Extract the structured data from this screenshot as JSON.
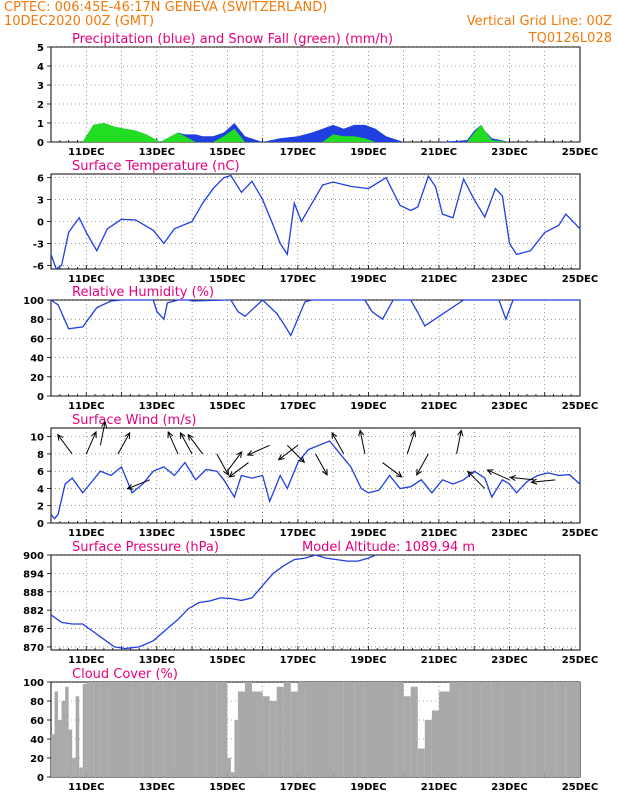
{
  "header": {
    "line1_left": "CPTEC:   006:45E-46:17N   GENEVA (SWITZERLAND)",
    "line2_left": "10DEC2020 00Z (GMT)",
    "line2_right": "Vertical Grid Line: 00Z",
    "line3_right": "TQ0126L028"
  },
  "colors": {
    "header": "#f27a0b",
    "title": "#e6007e",
    "line": "#1f3fe0",
    "snow": "#22dd22",
    "cloud": "#a9a9a9",
    "arrow": "#000000"
  },
  "chart_data": [
    {
      "type": "area",
      "title": "Precipitation (blue) and Snow Fall (green) (mm/h)",
      "ylim": [
        0,
        5
      ],
      "yticks": [
        "0",
        "1",
        "2",
        "3",
        "4",
        "5"
      ],
      "x": [
        10.5,
        10.9,
        11.2,
        11.5,
        11.8,
        12.1,
        12.4,
        12.7,
        13.1,
        13.6,
        13.8,
        14.1,
        14.3,
        14.6,
        14.9,
        15.2,
        15.5,
        16.0,
        16.5,
        17.0,
        17.4,
        17.7,
        18.0,
        18.3,
        18.6,
        18.9,
        19.2,
        19.5,
        20.0,
        21.0,
        21.8,
        22.0,
        22.2,
        22.3,
        22.5,
        23.0,
        24.0,
        24.9
      ],
      "series": [
        {
          "name": "precipitation",
          "values": [
            0,
            0,
            0.9,
            1.0,
            0.8,
            0.7,
            0.6,
            0.4,
            0,
            0.5,
            0.4,
            0.4,
            0.3,
            0.3,
            0.5,
            1.0,
            0.3,
            0,
            0.2,
            0.3,
            0.5,
            0.7,
            0.9,
            0.7,
            0.9,
            0.9,
            0.7,
            0.3,
            0,
            0,
            0.1,
            0.6,
            0.9,
            0.6,
            0.2,
            0,
            0,
            0
          ]
        },
        {
          "name": "snowfall",
          "values": [
            0,
            0,
            0.9,
            1.0,
            0.8,
            0.7,
            0.6,
            0.4,
            0,
            0.5,
            0.3,
            0,
            0,
            0,
            0.3,
            0.7,
            0,
            0,
            0,
            0,
            0,
            0,
            0.4,
            0.3,
            0.3,
            0.2,
            0,
            0,
            0,
            0,
            0,
            0.5,
            0.9,
            0.6,
            0.1,
            0,
            0,
            0
          ]
        }
      ],
      "xticks": [
        "11DEC",
        "13DEC",
        "15DEC",
        "17DEC",
        "19DEC",
        "21DEC",
        "23DEC",
        "25DEC"
      ]
    },
    {
      "type": "line",
      "title": "Surface Temperature (nC)",
      "ylim": [
        -6.5,
        6.5
      ],
      "yticks": [
        "-6",
        "-3",
        "0",
        "3",
        "6"
      ],
      "ytick_values": [
        -6,
        -3,
        0,
        3,
        6
      ],
      "x": [
        10.0,
        10.15,
        10.3,
        10.5,
        10.8,
        11.0,
        11.3,
        11.6,
        12.0,
        12.4,
        12.9,
        13.2,
        13.5,
        14.0,
        14.3,
        14.6,
        14.9,
        15.1,
        15.4,
        15.7,
        16.0,
        16.3,
        16.5,
        16.7,
        16.9,
        17.1,
        17.4,
        17.7,
        18.0,
        18.5,
        19.0,
        19.5,
        19.9,
        20.2,
        20.4,
        20.7,
        20.9,
        21.1,
        21.4,
        21.7,
        22.0,
        22.3,
        22.6,
        22.8,
        23.0,
        23.2,
        23.6,
        24.0,
        24.4,
        24.6,
        25.0
      ],
      "values": [
        -4.5,
        -6.5,
        -6.0,
        -1.5,
        0.5,
        -1.5,
        -4.0,
        -1.0,
        0.3,
        0.2,
        -1.2,
        -3.0,
        -1.0,
        0.0,
        2.5,
        4.5,
        6.0,
        6.3,
        4.0,
        5.5,
        3.0,
        -0.5,
        -3.0,
        -4.5,
        2.5,
        0.0,
        2.5,
        5.0,
        5.4,
        4.8,
        4.5,
        6.0,
        2.2,
        1.5,
        2.0,
        6.2,
        4.8,
        1.0,
        0.5,
        5.8,
        3.0,
        0.6,
        4.5,
        3.5,
        -3.0,
        -4.5,
        -4.0,
        -1.5,
        -0.5,
        1.0,
        -1.0
      ],
      "xticks": [
        "11DEC",
        "13DEC",
        "15DEC",
        "17DEC",
        "19DEC",
        "21DEC",
        "23DEC",
        "25DEC"
      ]
    },
    {
      "type": "line",
      "title": "Relative Humidity (%)",
      "ylim": [
        0,
        100
      ],
      "yticks": [
        "0",
        "20",
        "40",
        "60",
        "80",
        "100"
      ],
      "x": [
        10.0,
        10.2,
        10.5,
        10.9,
        11.3,
        11.7,
        12.0,
        12.9,
        13.0,
        13.2,
        13.3,
        13.6,
        13.9,
        14.0,
        15.0,
        15.1,
        15.3,
        15.5,
        16.0,
        16.4,
        16.6,
        16.8,
        17.2,
        17.4,
        18.5,
        18.9,
        19.1,
        19.4,
        19.7,
        20.2,
        20.4,
        20.6,
        21.7,
        21.9,
        22.0,
        22.7,
        22.9,
        23.1,
        25.0
      ],
      "values": [
        100,
        95,
        70,
        72,
        92,
        99,
        100,
        100,
        88,
        80,
        97,
        100,
        100,
        99,
        100,
        100,
        88,
        83,
        100,
        86,
        75,
        63,
        98,
        100,
        100,
        100,
        88,
        80,
        100,
        100,
        87,
        73,
        100,
        100,
        100,
        100,
        80,
        100,
        100
      ],
      "xticks": [
        "11DEC",
        "13DEC",
        "15DEC",
        "17DEC",
        "19DEC",
        "21DEC",
        "23DEC",
        "25DEC"
      ]
    },
    {
      "type": "line",
      "title": "Surface Wind (m/s)",
      "ylim": [
        0,
        11
      ],
      "yticks": [
        "0",
        "2",
        "4",
        "6",
        "8",
        "10"
      ],
      "x": [
        10.0,
        10.1,
        10.2,
        10.4,
        10.6,
        10.9,
        11.1,
        11.4,
        11.7,
        12.0,
        12.3,
        12.6,
        12.9,
        13.2,
        13.5,
        13.8,
        14.1,
        14.4,
        14.7,
        14.9,
        15.2,
        15.4,
        15.7,
        16.0,
        16.2,
        16.5,
        16.7,
        17.0,
        17.3,
        17.6,
        17.9,
        18.2,
        18.5,
        18.8,
        19.0,
        19.3,
        19.6,
        19.9,
        20.2,
        20.5,
        20.8,
        21.1,
        21.4,
        21.7,
        22.0,
        22.3,
        22.5,
        22.8,
        23.0,
        23.2,
        23.5,
        23.8,
        24.1,
        24.4,
        24.7,
        25.0
      ],
      "values": [
        1.0,
        0.5,
        1.0,
        4.5,
        5.2,
        3.5,
        4.5,
        6.0,
        5.5,
        6.5,
        3.5,
        4.5,
        6.0,
        6.5,
        5.5,
        7.0,
        5.0,
        6.2,
        6.0,
        5.0,
        3.0,
        5.5,
        5.2,
        5.5,
        2.5,
        5.5,
        4.0,
        7.0,
        8.5,
        9.0,
        9.5,
        8.0,
        6.5,
        4.0,
        3.5,
        3.8,
        5.5,
        4.0,
        4.2,
        5.0,
        3.5,
        5.0,
        4.5,
        5.0,
        6.0,
        5.2,
        3.0,
        5.0,
        4.5,
        3.5,
        4.8,
        5.5,
        5.8,
        5.5,
        5.6,
        4.5
      ],
      "arrows_speed": [
        8,
        8,
        9,
        8,
        5,
        8,
        8,
        8,
        8,
        6,
        7,
        9,
        9,
        9,
        8,
        8,
        8,
        7,
        8,
        8,
        8,
        4,
        5,
        5,
        5
      ],
      "arrows_x": [
        10.6,
        11.0,
        11.4,
        11.9,
        12.8,
        13.6,
        14.0,
        14.3,
        14.7,
        15.0,
        15.6,
        16.2,
        16.7,
        17.0,
        17.5,
        18.3,
        18.9,
        19.4,
        20.1,
        20.7,
        21.5,
        22.3,
        23.0,
        23.7,
        24.3
      ],
      "arrows_dx": [
        -0.6,
        0.4,
        0.2,
        0.5,
        -1.0,
        -0.4,
        -0.5,
        -0.6,
        0.5,
        0.6,
        -0.8,
        -0.9,
        0.7,
        -0.8,
        0.5,
        -0.5,
        -0.2,
        0.8,
        0.3,
        -0.5,
        0.2,
        -0.7,
        -0.9,
        -1.0,
        -1.0
      ],
      "arrows_dy": [
        -0.8,
        -0.9,
        -1.0,
        -0.9,
        0.4,
        -0.9,
        -0.9,
        -0.8,
        0.9,
        -0.8,
        0.6,
        0.4,
        0.7,
        0.6,
        0.9,
        -0.9,
        -1.0,
        0.6,
        -0.9,
        0.9,
        -1.0,
        -0.7,
        -0.4,
        -0.1,
        0.1
      ],
      "xticks": [
        "11DEC",
        "13DEC",
        "15DEC",
        "17DEC",
        "19DEC",
        "21DEC",
        "23DEC",
        "25DEC"
      ]
    },
    {
      "type": "line",
      "title": "Surface Pressure (hPa)",
      "annotation": "Model Altitude: 1089.94 m",
      "ylim": [
        869,
        900
      ],
      "yticks": [
        "870",
        "876",
        "882",
        "888",
        "894",
        "900"
      ],
      "ytick_values": [
        870,
        876,
        882,
        888,
        894,
        900
      ],
      "x": [
        10.0,
        10.3,
        10.6,
        10.9,
        11.2,
        11.5,
        11.8,
        12.1,
        12.5,
        12.9,
        13.3,
        13.6,
        13.9,
        14.2,
        14.5,
        14.8,
        15.1,
        15.4,
        15.7,
        16.0,
        16.3,
        16.6,
        16.9,
        17.2,
        17.5,
        17.8,
        18.1,
        18.4,
        18.7,
        19.0,
        19.2
      ],
      "values": [
        880.5,
        878,
        877.5,
        877.5,
        875,
        872.5,
        870,
        869.5,
        870,
        872,
        876,
        879,
        882.5,
        884.5,
        885,
        886,
        885.8,
        885.2,
        886,
        890,
        894,
        896.5,
        898.5,
        899,
        900,
        899,
        898.5,
        898,
        898,
        899,
        900
      ],
      "xticks": [
        "11DEC",
        "13DEC",
        "15DEC",
        "17DEC",
        "19DEC",
        "21DEC",
        "23DEC",
        "25DEC"
      ]
    },
    {
      "type": "bar",
      "title": "Cloud Cover (%)",
      "ylim": [
        0,
        100
      ],
      "yticks": [
        "0",
        "20",
        "40",
        "60",
        "80",
        "100"
      ],
      "x": [
        10.0,
        10.1,
        10.2,
        10.3,
        10.4,
        10.5,
        10.6,
        10.7,
        10.8,
        10.9,
        11.0,
        11.1,
        11.2,
        11.4,
        11.6,
        11.8,
        12.0,
        12.3,
        12.6,
        12.9,
        13.2,
        13.5,
        13.8,
        14.1,
        14.4,
        14.7,
        15.0,
        15.1,
        15.2,
        15.3,
        15.5,
        15.7,
        16.0,
        16.2,
        16.4,
        16.6,
        16.8,
        17.0,
        17.2,
        17.4,
        17.7,
        18.0,
        18.3,
        18.6,
        18.9,
        19.2,
        19.5,
        19.8,
        20.0,
        20.2,
        20.4,
        20.6,
        20.8,
        21.0,
        21.3,
        21.6,
        21.9,
        22.2,
        22.5,
        22.8,
        23.1,
        23.4,
        23.7,
        24.0,
        24.3,
        24.6,
        24.9
      ],
      "values": [
        45,
        90,
        60,
        80,
        95,
        50,
        20,
        85,
        10,
        98,
        100,
        100,
        100,
        100,
        100,
        100,
        100,
        100,
        100,
        100,
        100,
        100,
        100,
        100,
        100,
        100,
        20,
        5,
        60,
        90,
        100,
        90,
        85,
        80,
        95,
        100,
        90,
        100,
        100,
        100,
        100,
        100,
        100,
        100,
        100,
        100,
        100,
        100,
        85,
        95,
        30,
        60,
        70,
        90,
        100,
        100,
        100,
        100,
        100,
        100,
        100,
        100,
        100,
        100,
        100,
        100,
        100
      ],
      "xticks": [
        "11DEC",
        "13DEC",
        "15DEC",
        "17DEC",
        "19DEC",
        "21DEC",
        "23DEC",
        "25DEC"
      ]
    }
  ]
}
